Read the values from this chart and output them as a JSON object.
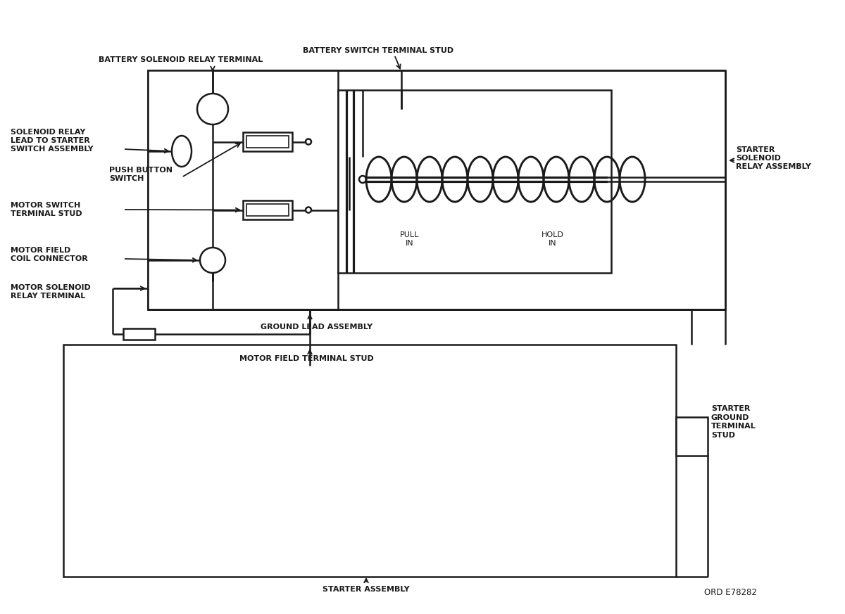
{
  "background_color": "#ffffff",
  "line_color": "#1a1a1a",
  "labels": {
    "battery_solenoid_relay_terminal": "BATTERY SOLENOID RELAY TERMINAL",
    "battery_switch_terminal_stud": "BATTERY SWITCH TERMINAL STUD",
    "solenoid_relay_lead": "SOLENOID RELAY\nLEAD TO STARTER\nSWITCH ASSEMBLY",
    "push_button_switch": "PUSH BUTTON\nSWITCH",
    "motor_switch_terminal_stud": "MOTOR SWITCH\nTERMINAL STUD",
    "motor_field_coil_connector": "MOTOR FIELD\nCOIL CONNECTOR",
    "motor_solenoid_relay_terminal": "MOTOR SOLENOID\nRELAY TERMINAL",
    "ground_lead_assembly": "GROUND LEAD ASSEMBLY",
    "motor_field_terminal_stud": "MOTOR FIELD TERMINAL STUD",
    "pull_in": "PULL\nIN",
    "hold_in": "HOLD\nIN",
    "starter_solenoid_relay_assembly": "STARTER\nSOLENOID\nRELAY ASSEMBLY",
    "starter_ground_terminal_stud": "STARTER\nGROUND\nTERMINAL\nSTUD",
    "starter_assembly": "STARTER ASSEMBLY",
    "ord": "ORD E78282"
  },
  "font_size": 8.0
}
